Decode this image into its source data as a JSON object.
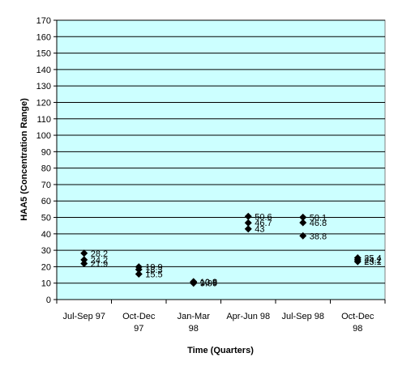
{
  "chart_data": {
    "type": "scatter",
    "title": "",
    "xlabel": "Time (Quarters)",
    "ylabel": "HAA5 (Concentration Range)",
    "ylim": [
      0,
      170
    ],
    "ytick_step": 10,
    "grid": "horizontal",
    "legend": "none",
    "colors": {
      "plot_bg": "#ccffff",
      "marker": "#000000",
      "grid": "#000000"
    },
    "categories": [
      [
        "Jul-Sep 97"
      ],
      [
        "Oct-Dec",
        "97"
      ],
      [
        "Jan-Mar",
        "98"
      ],
      [
        "Apr-Jun 98"
      ],
      [
        "Jul-Sep 98"
      ],
      [
        "Oct-Dec",
        "98"
      ]
    ],
    "series": [
      {
        "values": [
          [
            28.2,
            24.2,
            21.9
          ],
          [
            19.9,
            18.3,
            15.5
          ],
          [
            10.9,
            10.5,
            9.99
          ],
          [
            50.6,
            46.7,
            43
          ],
          [
            50.1,
            46.8,
            38.8
          ],
          [
            25.4,
            24.2,
            23.1
          ]
        ]
      }
    ],
    "labels": [
      [
        "28.2",
        "24.2",
        "21.9"
      ],
      [
        "19.9",
        "18.3",
        "15.5"
      ],
      [
        "10.9",
        "10.5",
        "9.99"
      ],
      [
        "50.6",
        "46.7",
        "43"
      ],
      [
        "50.1",
        "46.8",
        "38.8"
      ],
      [
        "25.4",
        "24.2",
        "23.1"
      ]
    ]
  }
}
